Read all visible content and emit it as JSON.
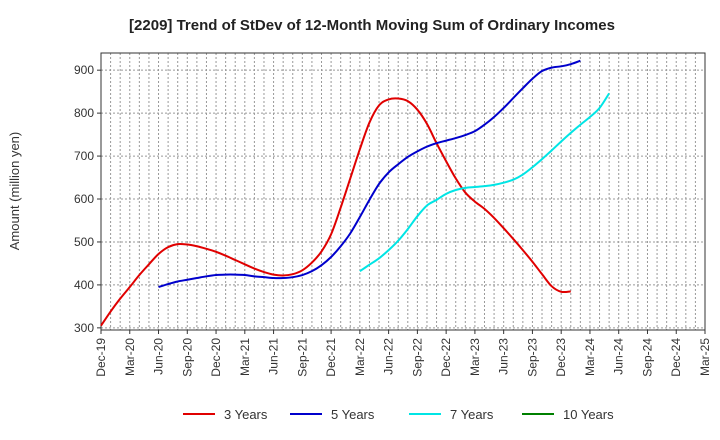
{
  "chart_data": {
    "type": "line",
    "title": "[2209]  Trend of StDev of 12-Month Moving Sum of Ordinary Incomes",
    "xlabel": "",
    "ylabel": "Amount (million yen)",
    "ylim": [
      295,
      940
    ],
    "yticks": [
      300,
      400,
      500,
      600,
      700,
      800,
      900
    ],
    "grid": true,
    "legend_position": "bottom",
    "x_tick_labels": [
      "Dec-19",
      "Mar-20",
      "Jun-20",
      "Sep-20",
      "Dec-20",
      "Mar-21",
      "Jun-21",
      "Sep-21",
      "Dec-21",
      "Mar-22",
      "Jun-22",
      "Sep-22",
      "Dec-22",
      "Mar-23",
      "Jun-23",
      "Sep-23",
      "Dec-23",
      "Mar-24",
      "Jun-24",
      "Sep-24",
      "Dec-24",
      "Mar-25"
    ],
    "series": [
      {
        "name": "3 Years",
        "color": "#e00000",
        "start_index": 0,
        "values": [
          305,
          338,
          368,
          395,
          423,
          448,
          472,
          488,
          495,
          494,
          490,
          484,
          477,
          468,
          458,
          448,
          438,
          430,
          424,
          422,
          425,
          434,
          452,
          478,
          518,
          580,
          648,
          716,
          778,
          818,
          832,
          834,
          828,
          808,
          775,
          730,
          688,
          648,
          615,
          594,
          577,
          556,
          532,
          507,
          481,
          454,
          425,
          397,
          384,
          385
        ]
      },
      {
        "name": "5 Years",
        "color": "#0000cc",
        "start_index": 6,
        "values": [
          395,
          402,
          408,
          412,
          416,
          420,
          423,
          424,
          424,
          423,
          420,
          418,
          416,
          416,
          418,
          423,
          432,
          446,
          465,
          490,
          520,
          558,
          598,
          635,
          662,
          681,
          698,
          711,
          722,
          730,
          736,
          742,
          749,
          758,
          773,
          791,
          812,
          835,
          858,
          880,
          898,
          906,
          909,
          914,
          922
        ]
      },
      {
        "name": "7 Years",
        "color": "#00e5e5",
        "start_index": 27,
        "values": [
          432,
          447,
          462,
          481,
          503,
          530,
          560,
          585,
          598,
          612,
          621,
          626,
          628,
          630,
          633,
          638,
          645,
          657,
          674,
          693,
          713,
          734,
          754,
          773,
          791,
          812,
          846
        ]
      },
      {
        "name": "10 Years",
        "color": "#008000",
        "start_index": 0,
        "values": []
      }
    ]
  }
}
